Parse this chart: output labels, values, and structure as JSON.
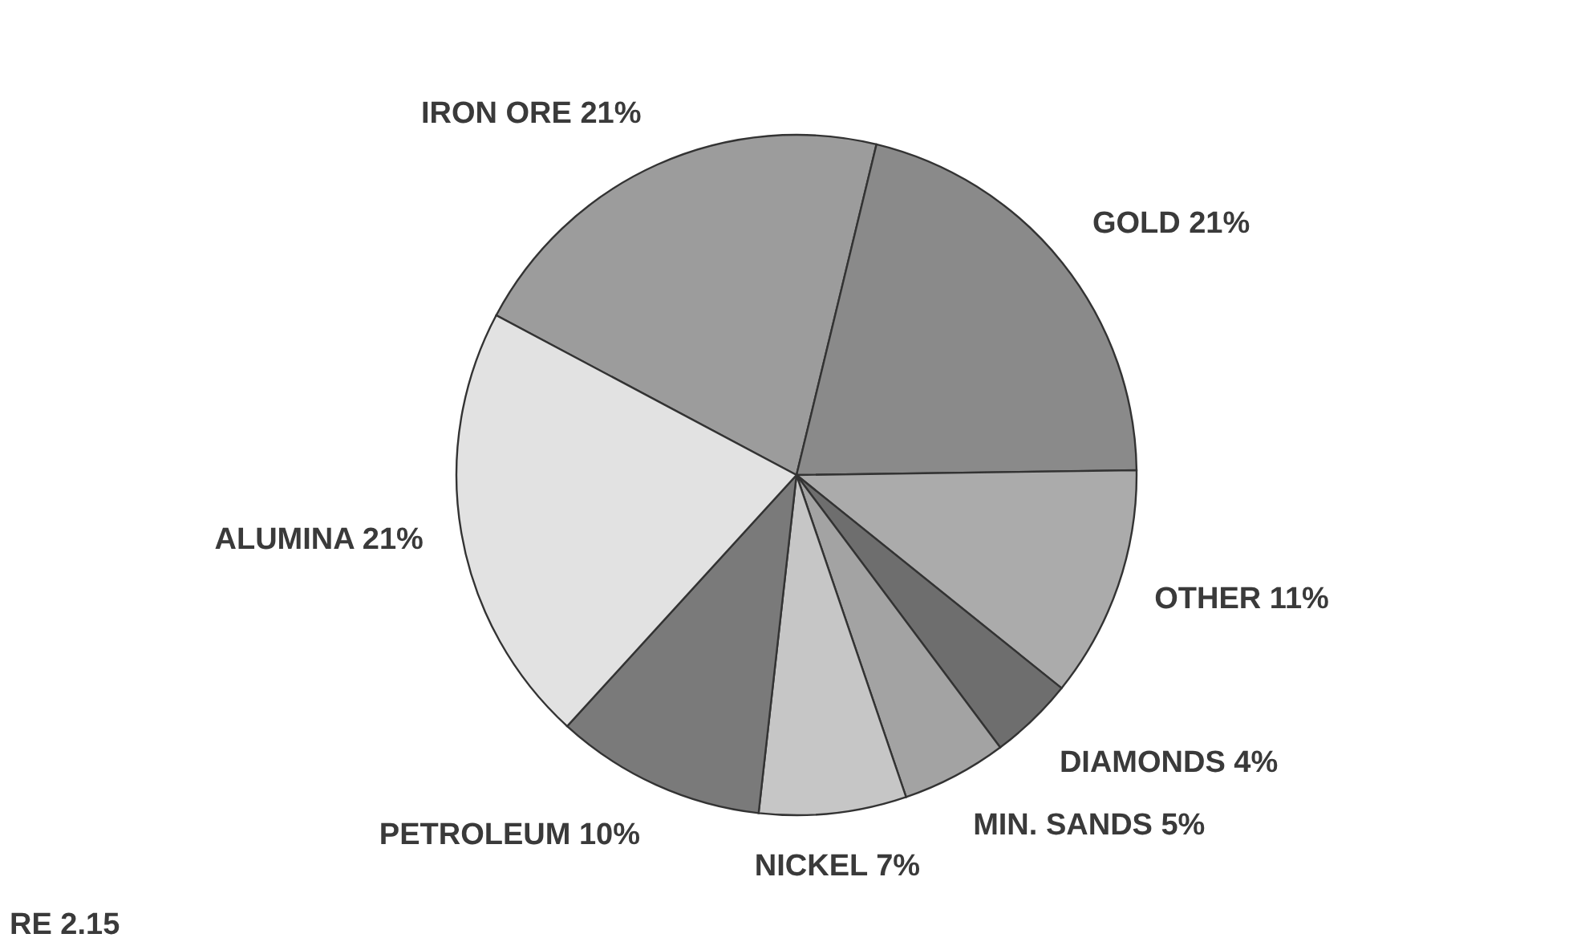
{
  "chart_data": {
    "type": "pie",
    "categories": [
      "IRON ORE",
      "GOLD",
      "OTHER",
      "DIAMONDS",
      "MIN. SANDS",
      "NICKEL",
      "PETROLEUM",
      "ALUMINA"
    ],
    "values": [
      21,
      21,
      11,
      4,
      5,
      7,
      10,
      21
    ],
    "value_labels": [
      "21%",
      "21%",
      "11%",
      "4%",
      "5%",
      "7%",
      "10%",
      "21%"
    ],
    "colors": [
      "#9c9c9c",
      "#8a8a8a",
      "#ababab",
      "#6e6e6e",
      "#a3a3a3",
      "#c6c6c6",
      "#7a7a7a",
      "#e2e2e2"
    ],
    "annotations": [
      "RE 2.15"
    ]
  }
}
